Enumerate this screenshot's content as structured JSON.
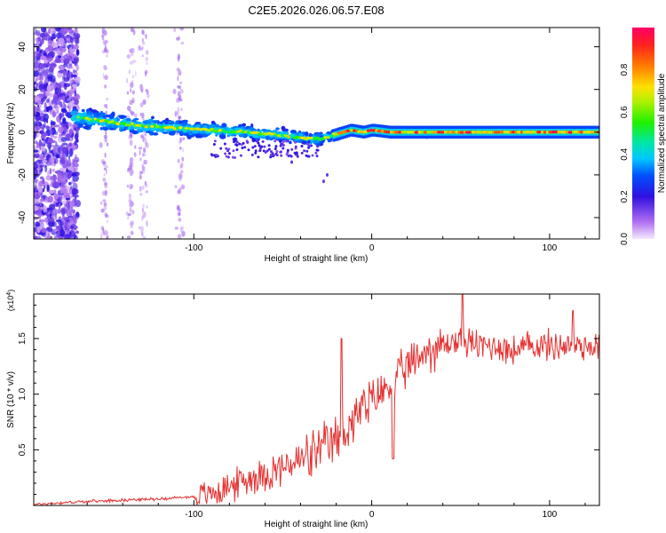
{
  "figure": {
    "title": "C2E5.2026.026.06.57.E08"
  },
  "chart_data": [
    {
      "type": "heatmap",
      "panel": "spectrogram",
      "xlabel": "Height of straight line (km)",
      "ylabel": "Frequency (Hz)",
      "xlim": [
        -190,
        128
      ],
      "ylim": [
        -50,
        49
      ],
      "x_ticks": [
        -100,
        0,
        100
      ],
      "y_ticks": [
        -40,
        -20,
        0,
        20,
        40
      ],
      "colorbar": {
        "label": "Normalized spectral amplitude",
        "range": [
          0,
          1
        ],
        "ticks": [
          0.0,
          0.2,
          0.4,
          0.6,
          0.8
        ]
      },
      "ridge": {
        "description": "dominant frequency track",
        "x": [
          -165,
          -150,
          -130,
          -110,
          -90,
          -70,
          -55,
          -45,
          -35,
          -28,
          -20,
          -12,
          -5,
          0,
          10,
          40,
          80,
          128
        ],
        "y": [
          7,
          5,
          3,
          2,
          1,
          0,
          -1,
          -2,
          -3,
          -3,
          -1,
          1,
          0,
          1,
          0,
          0,
          0,
          0
        ]
      },
      "noise_band_x": [
        -190,
        -165
      ]
    },
    {
      "type": "line",
      "panel": "snr",
      "xlabel": "Height of straight line (km)",
      "ylabel": "SNR (10 * v/v)",
      "y_multiplier_base": "(x10",
      "y_multiplier_exp": "4",
      "y_multiplier_close": ")",
      "xlim": [
        -190,
        128
      ],
      "ylim": [
        0,
        1.9
      ],
      "x_ticks": [
        -100,
        0,
        100
      ],
      "y_ticks": [
        0.5,
        1.0,
        1.5
      ],
      "y_tick_labels": [
        "0.5",
        "1.0",
        "1.5"
      ],
      "series": [
        {
          "name": "SNR",
          "color": "#e53030",
          "trend": {
            "x": [
              -190,
              -170,
              -140,
              -120,
              -100,
              -90,
              -80,
              -70,
              -60,
              -50,
              -40,
              -30,
              -20,
              -10,
              0,
              10,
              20,
              30,
              40,
              50,
              60,
              70,
              80,
              90,
              100,
              110,
              128
            ],
            "y": [
              0.01,
              0.03,
              0.05,
              0.06,
              0.08,
              0.12,
              0.18,
              0.25,
              0.3,
              0.35,
              0.42,
              0.5,
              0.6,
              0.8,
              0.95,
              1.1,
              1.25,
              1.4,
              1.45,
              1.5,
              1.45,
              1.45,
              1.4,
              1.45,
              1.45,
              1.45,
              1.45
            ]
          },
          "peaks": [
            {
              "x": -17,
              "y": 1.5
            },
            {
              "x": 12,
              "y": 0.42
            },
            {
              "x": 51,
              "y": 1.9
            },
            {
              "x": 113,
              "y": 1.75
            }
          ]
        }
      ]
    }
  ]
}
